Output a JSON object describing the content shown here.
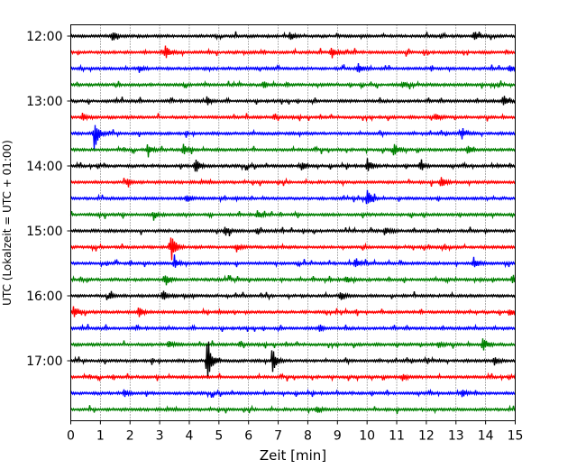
{
  "chart_data": {
    "type": "line",
    "title": "",
    "xlabel": "Zeit  [min]",
    "ylabel": "UTC (Lokalzeit = UTC + 01:00)",
    "xlim": [
      0,
      15
    ],
    "x_ticks": [
      "0",
      "1",
      "2",
      "3",
      "4",
      "5",
      "6",
      "7",
      "8",
      "9",
      "10",
      "11",
      "12",
      "13",
      "14",
      "15"
    ],
    "y_tick_labels": [
      "12:00",
      "13:00",
      "14:00",
      "15:00",
      "16:00",
      "17:00"
    ],
    "trace_interval_min": 15,
    "grid": "vertical-dotted",
    "trace_colors": [
      "#000000",
      "#ff0000",
      "#0000ff",
      "#008000"
    ],
    "traces": [
      {
        "start": "12:00",
        "color": "#000000",
        "events": [
          [
            1.4,
            0.3
          ],
          [
            7.4,
            0.25
          ],
          [
            13.6,
            0.3
          ]
        ]
      },
      {
        "start": "12:15",
        "color": "#ff0000",
        "events": [
          [
            3.2,
            0.45
          ],
          [
            8.8,
            0.35
          ]
        ]
      },
      {
        "start": "12:30",
        "color": "#0000ff",
        "events": [
          [
            2.3,
            0.2
          ],
          [
            9.7,
            0.3
          ],
          [
            14.8,
            0.2
          ]
        ]
      },
      {
        "start": "12:45",
        "color": "#008000",
        "events": [
          [
            6.5,
            0.2
          ],
          [
            11.2,
            0.2
          ]
        ]
      },
      {
        "start": "13:00",
        "color": "#000000",
        "events": [
          [
            4.6,
            0.25
          ],
          [
            14.6,
            0.3
          ]
        ]
      },
      {
        "start": "13:15",
        "color": "#ff0000",
        "events": [
          [
            0.4,
            0.2
          ],
          [
            12.3,
            0.2
          ]
        ]
      },
      {
        "start": "13:30",
        "color": "#0000ff",
        "events": [
          [
            0.8,
            1.0
          ],
          [
            13.2,
            0.25
          ]
        ]
      },
      {
        "start": "13:45",
        "color": "#008000",
        "events": [
          [
            2.6,
            0.35
          ],
          [
            3.8,
            0.35
          ],
          [
            10.9,
            0.4
          ],
          [
            13.4,
            0.3
          ]
        ]
      },
      {
        "start": "14:00",
        "color": "#000000",
        "events": [
          [
            4.2,
            0.55
          ],
          [
            7.8,
            0.25
          ],
          [
            10.0,
            0.45
          ],
          [
            11.8,
            0.3
          ]
        ]
      },
      {
        "start": "14:15",
        "color": "#ff0000",
        "events": [
          [
            1.9,
            0.2
          ],
          [
            12.5,
            0.35
          ]
        ]
      },
      {
        "start": "14:30",
        "color": "#0000ff",
        "events": [
          [
            3.9,
            0.25
          ],
          [
            10.0,
            0.55
          ]
        ]
      },
      {
        "start": "14:45",
        "color": "#008000",
        "events": [
          [
            2.8,
            0.2
          ],
          [
            6.3,
            0.2
          ]
        ]
      },
      {
        "start": "15:00",
        "color": "#000000",
        "events": [
          [
            5.2,
            0.3
          ],
          [
            10.6,
            0.25
          ]
        ]
      },
      {
        "start": "15:15",
        "color": "#ff0000",
        "events": [
          [
            3.4,
            0.9
          ],
          [
            5.6,
            0.2
          ]
        ]
      },
      {
        "start": "15:30",
        "color": "#0000ff",
        "events": [
          [
            3.5,
            0.3
          ],
          [
            9.6,
            0.35
          ],
          [
            13.6,
            0.35
          ]
        ]
      },
      {
        "start": "15:45",
        "color": "#008000",
        "events": [
          [
            3.2,
            0.35
          ],
          [
            9.3,
            0.2
          ],
          [
            14.9,
            0.3
          ]
        ]
      },
      {
        "start": "16:00",
        "color": "#000000",
        "events": [
          [
            1.3,
            0.2
          ],
          [
            3.1,
            0.3
          ],
          [
            9.1,
            0.3
          ]
        ]
      },
      {
        "start": "16:15",
        "color": "#ff0000",
        "events": [
          [
            0.1,
            0.4
          ],
          [
            2.3,
            0.35
          ],
          [
            14.8,
            0.25
          ]
        ]
      },
      {
        "start": "16:30",
        "color": "#0000ff",
        "events": [
          [
            8.4,
            0.2
          ]
        ]
      },
      {
        "start": "16:45",
        "color": "#008000",
        "events": [
          [
            3.3,
            0.25
          ],
          [
            12.4,
            0.2
          ],
          [
            13.9,
            0.45
          ]
        ]
      },
      {
        "start": "17:00",
        "color": "#000000",
        "events": [
          [
            4.6,
            1.8
          ],
          [
            6.8,
            0.75
          ],
          [
            14.3,
            0.25
          ]
        ]
      },
      {
        "start": "17:15",
        "color": "#ff0000",
        "events": [
          [
            11.2,
            0.2
          ]
        ]
      },
      {
        "start": "17:30",
        "color": "#0000ff",
        "events": [
          [
            1.8,
            0.2
          ],
          [
            13.2,
            0.2
          ]
        ]
      },
      {
        "start": "17:45",
        "color": "#008000",
        "events": [
          [
            8.3,
            0.25
          ]
        ]
      }
    ]
  }
}
